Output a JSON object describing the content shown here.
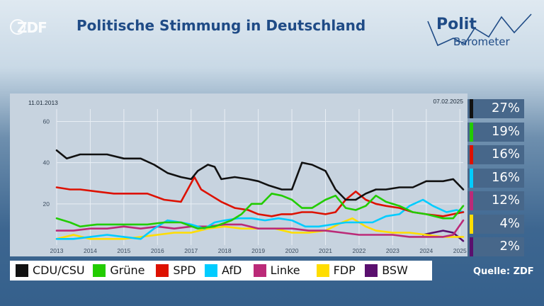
{
  "header": {
    "title": "Politische Stimmung in Deutschland",
    "logo_left_text": "ZDF",
    "logo_right_line1": "Polit",
    "logo_right_line2": "Barometer"
  },
  "source": "Quelle: ZDF",
  "chart_data": {
    "type": "line",
    "start_label": "11.01.2013",
    "end_label": "07.02.2025",
    "x_ticks": [
      "2013",
      "2014",
      "2015",
      "2016",
      "2017",
      "2018",
      "2019",
      "2020",
      "2021",
      "2022",
      "2023",
      "2024",
      "2025"
    ],
    "y_ticks": [
      20,
      40,
      60
    ],
    "ylim": [
      0,
      66
    ],
    "xlim": [
      2013.0,
      2025.1
    ],
    "series": [
      {
        "name": "CDU/CSU",
        "color": "#111111",
        "current": "27%",
        "points": [
          [
            2013.0,
            46
          ],
          [
            2013.3,
            42
          ],
          [
            2013.7,
            44
          ],
          [
            2014.0,
            44
          ],
          [
            2014.5,
            44
          ],
          [
            2015.0,
            42
          ],
          [
            2015.5,
            42
          ],
          [
            2015.9,
            39
          ],
          [
            2016.3,
            35
          ],
          [
            2016.7,
            33
          ],
          [
            2017.0,
            32
          ],
          [
            2017.2,
            36
          ],
          [
            2017.5,
            39
          ],
          [
            2017.7,
            38
          ],
          [
            2017.9,
            32
          ],
          [
            2018.3,
            33
          ],
          [
            2018.7,
            32
          ],
          [
            2019.0,
            31
          ],
          [
            2019.3,
            29
          ],
          [
            2019.7,
            27
          ],
          [
            2020.0,
            27
          ],
          [
            2020.3,
            40
          ],
          [
            2020.6,
            39
          ],
          [
            2021.0,
            36
          ],
          [
            2021.3,
            27
          ],
          [
            2021.6,
            22
          ],
          [
            2021.9,
            22
          ],
          [
            2022.2,
            25
          ],
          [
            2022.5,
            27
          ],
          [
            2022.8,
            27
          ],
          [
            2023.2,
            28
          ],
          [
            2023.6,
            28
          ],
          [
            2024.0,
            31
          ],
          [
            2024.5,
            31
          ],
          [
            2024.8,
            32
          ],
          [
            2025.1,
            27
          ]
        ]
      },
      {
        "name": "Grüne",
        "color": "#22cc00",
        "current": "19%",
        "points": [
          [
            2013.0,
            13
          ],
          [
            2013.4,
            11
          ],
          [
            2013.7,
            9
          ],
          [
            2014.2,
            10
          ],
          [
            2014.7,
            10
          ],
          [
            2015.2,
            10
          ],
          [
            2015.7,
            10
          ],
          [
            2016.2,
            11
          ],
          [
            2016.7,
            11
          ],
          [
            2017.2,
            8
          ],
          [
            2017.7,
            9
          ],
          [
            2018.2,
            12
          ],
          [
            2018.5,
            15
          ],
          [
            2018.8,
            20
          ],
          [
            2019.1,
            20
          ],
          [
            2019.4,
            25
          ],
          [
            2019.7,
            24
          ],
          [
            2020.0,
            22
          ],
          [
            2020.3,
            18
          ],
          [
            2020.6,
            18
          ],
          [
            2021.0,
            22
          ],
          [
            2021.3,
            24
          ],
          [
            2021.6,
            18
          ],
          [
            2021.9,
            17
          ],
          [
            2022.2,
            19
          ],
          [
            2022.5,
            24
          ],
          [
            2022.8,
            21
          ],
          [
            2023.2,
            19
          ],
          [
            2023.6,
            16
          ],
          [
            2024.0,
            15
          ],
          [
            2024.5,
            13
          ],
          [
            2024.8,
            13
          ],
          [
            2025.1,
            19
          ]
        ]
      },
      {
        "name": "SPD",
        "color": "#dd1100",
        "current": "16%",
        "points": [
          [
            2013.0,
            28
          ],
          [
            2013.4,
            27
          ],
          [
            2013.7,
            27
          ],
          [
            2014.2,
            26
          ],
          [
            2014.7,
            25
          ],
          [
            2015.2,
            25
          ],
          [
            2015.7,
            25
          ],
          [
            2016.2,
            22
          ],
          [
            2016.7,
            21
          ],
          [
            2017.1,
            33
          ],
          [
            2017.3,
            27
          ],
          [
            2017.6,
            24
          ],
          [
            2017.9,
            21
          ],
          [
            2018.3,
            18
          ],
          [
            2018.7,
            17
          ],
          [
            2019.0,
            15
          ],
          [
            2019.4,
            14
          ],
          [
            2019.7,
            15
          ],
          [
            2020.0,
            15
          ],
          [
            2020.3,
            16
          ],
          [
            2020.6,
            16
          ],
          [
            2021.0,
            15
          ],
          [
            2021.3,
            16
          ],
          [
            2021.6,
            22
          ],
          [
            2021.9,
            26
          ],
          [
            2022.2,
            22
          ],
          [
            2022.5,
            20
          ],
          [
            2022.8,
            19
          ],
          [
            2023.2,
            18
          ],
          [
            2023.6,
            16
          ],
          [
            2024.0,
            15
          ],
          [
            2024.5,
            14
          ],
          [
            2024.8,
            15
          ],
          [
            2025.1,
            16
          ]
        ]
      },
      {
        "name": "AfD",
        "color": "#00ccff",
        "current": "16%",
        "points": [
          [
            2013.0,
            3
          ],
          [
            2013.5,
            3
          ],
          [
            2014.0,
            4
          ],
          [
            2014.5,
            5
          ],
          [
            2015.0,
            4
          ],
          [
            2015.5,
            3
          ],
          [
            2015.9,
            8
          ],
          [
            2016.3,
            12
          ],
          [
            2016.7,
            11
          ],
          [
            2017.0,
            10
          ],
          [
            2017.4,
            8
          ],
          [
            2017.7,
            11
          ],
          [
            2018.0,
            12
          ],
          [
            2018.4,
            13
          ],
          [
            2018.8,
            13
          ],
          [
            2019.2,
            12
          ],
          [
            2019.6,
            13
          ],
          [
            2020.0,
            12
          ],
          [
            2020.4,
            9
          ],
          [
            2020.8,
            9
          ],
          [
            2021.2,
            10
          ],
          [
            2021.6,
            11
          ],
          [
            2022.0,
            11
          ],
          [
            2022.4,
            11
          ],
          [
            2022.8,
            14
          ],
          [
            2023.2,
            15
          ],
          [
            2023.5,
            19
          ],
          [
            2023.9,
            22
          ],
          [
            2024.2,
            19
          ],
          [
            2024.6,
            16
          ],
          [
            2024.9,
            17
          ],
          [
            2025.1,
            16
          ]
        ]
      },
      {
        "name": "Linke",
        "color": "#bb2a78",
        "current": "12%",
        "points": [
          [
            2013.0,
            7
          ],
          [
            2013.5,
            7
          ],
          [
            2014.0,
            8
          ],
          [
            2014.5,
            8
          ],
          [
            2015.0,
            9
          ],
          [
            2015.5,
            8
          ],
          [
            2016.0,
            9
          ],
          [
            2016.5,
            8
          ],
          [
            2017.0,
            9
          ],
          [
            2017.5,
            9
          ],
          [
            2018.0,
            10
          ],
          [
            2018.5,
            10
          ],
          [
            2019.0,
            8
          ],
          [
            2019.5,
            8
          ],
          [
            2020.0,
            8
          ],
          [
            2020.5,
            7
          ],
          [
            2021.0,
            7
          ],
          [
            2021.5,
            6
          ],
          [
            2022.0,
            5
          ],
          [
            2022.5,
            5
          ],
          [
            2023.0,
            5
          ],
          [
            2023.5,
            4
          ],
          [
            2024.0,
            4
          ],
          [
            2024.5,
            4
          ],
          [
            2024.8,
            5
          ],
          [
            2025.1,
            12
          ]
        ]
      },
      {
        "name": "FDP",
        "color": "#ffdd00",
        "current": "4%",
        "points": [
          [
            2013.0,
            3
          ],
          [
            2013.5,
            5
          ],
          [
            2014.0,
            3
          ],
          [
            2014.5,
            3
          ],
          [
            2015.0,
            3
          ],
          [
            2015.5,
            4
          ],
          [
            2016.0,
            5
          ],
          [
            2016.5,
            6
          ],
          [
            2017.0,
            6
          ],
          [
            2017.5,
            8
          ],
          [
            2018.0,
            9
          ],
          [
            2018.5,
            8
          ],
          [
            2019.0,
            8
          ],
          [
            2019.5,
            8
          ],
          [
            2020.0,
            6
          ],
          [
            2020.5,
            6
          ],
          [
            2021.0,
            7
          ],
          [
            2021.5,
            11
          ],
          [
            2021.8,
            13
          ],
          [
            2022.2,
            9
          ],
          [
            2022.5,
            7
          ],
          [
            2023.0,
            6
          ],
          [
            2023.5,
            6
          ],
          [
            2024.0,
            5
          ],
          [
            2024.5,
            4
          ],
          [
            2025.1,
            4
          ]
        ]
      },
      {
        "name": "BSW",
        "color": "#5a0f6e",
        "current": "2%",
        "points": [
          [
            2023.9,
            5
          ],
          [
            2024.2,
            6
          ],
          [
            2024.5,
            7
          ],
          [
            2024.8,
            6
          ],
          [
            2025.1,
            2
          ]
        ]
      }
    ]
  }
}
